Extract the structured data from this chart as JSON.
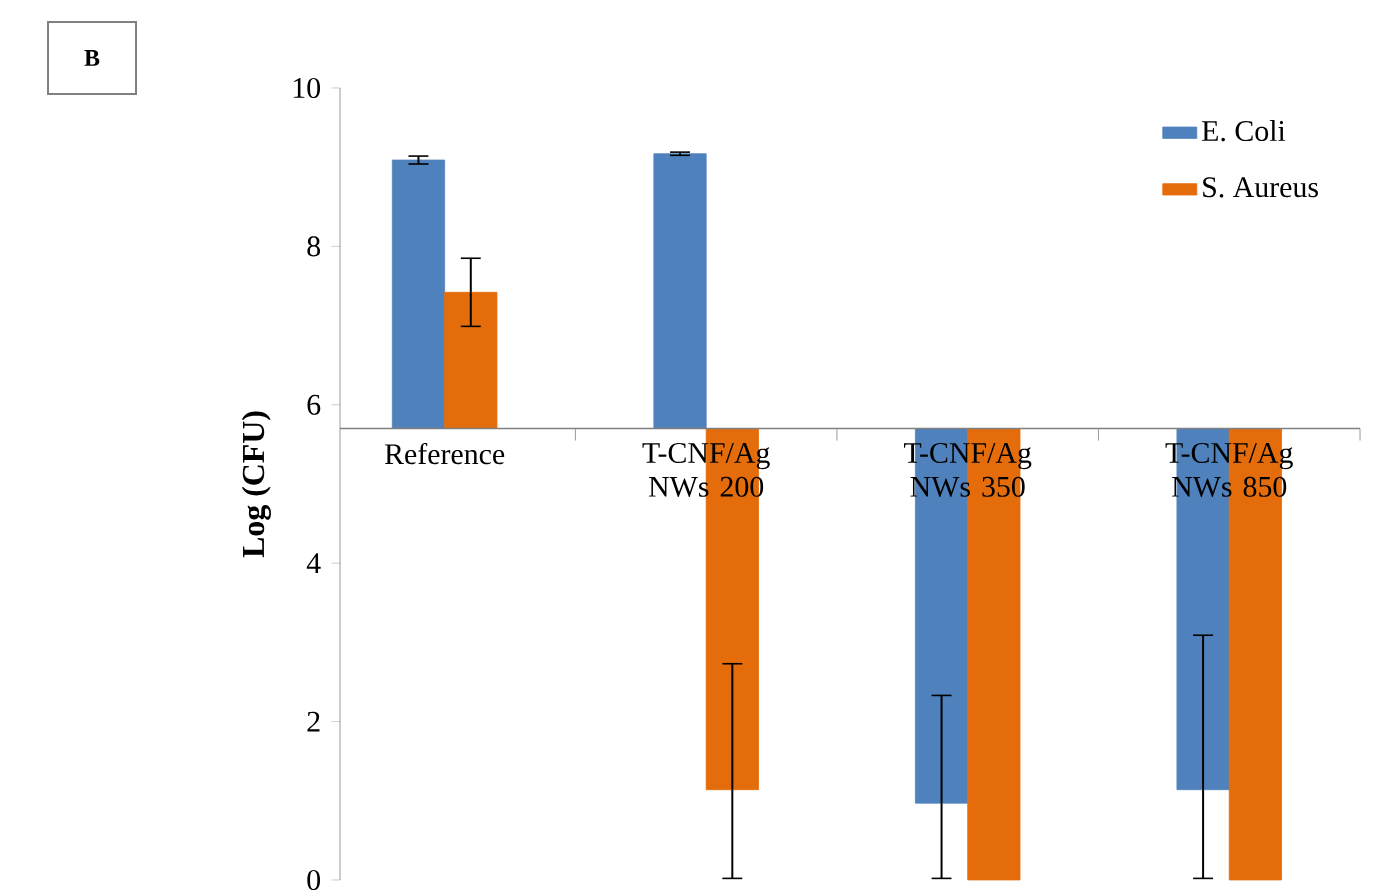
{
  "chart_data": {
    "type": "bar",
    "categories": [
      "Reference",
      "T-CNF/Ag NWs 200",
      "T-CNF/Ag NWs 350",
      "T-CNF/Ag NWs 850"
    ],
    "series": [
      {
        "name": "E. Coli",
        "color": "#4f81bd",
        "base": [
          5.7,
          5.7,
          5.7,
          5.7
        ],
        "values": [
          3.39,
          3.47,
          -4.73,
          -4.56
        ],
        "errors": [
          0.05,
          0.02,
          [
            0.02,
            2.33
          ],
          [
            0.02,
            3.09
          ]
        ]
      },
      {
        "name": "S. Aureus",
        "color": "#e46c0a",
        "base": [
          5.7,
          5.7,
          5.7,
          5.7
        ],
        "values": [
          1.72,
          -4.56,
          -5.7,
          -5.7
        ],
        "errors": [
          0.43,
          [
            0.02,
            2.73
          ],
          null,
          null
        ]
      }
    ],
    "ylabel": "Log (CFU)",
    "ylim": [
      0,
      10
    ],
    "yticks": [
      0,
      2,
      4,
      6,
      8,
      10
    ],
    "legend": "top right",
    "grid": false,
    "annotations": [
      "B"
    ]
  }
}
